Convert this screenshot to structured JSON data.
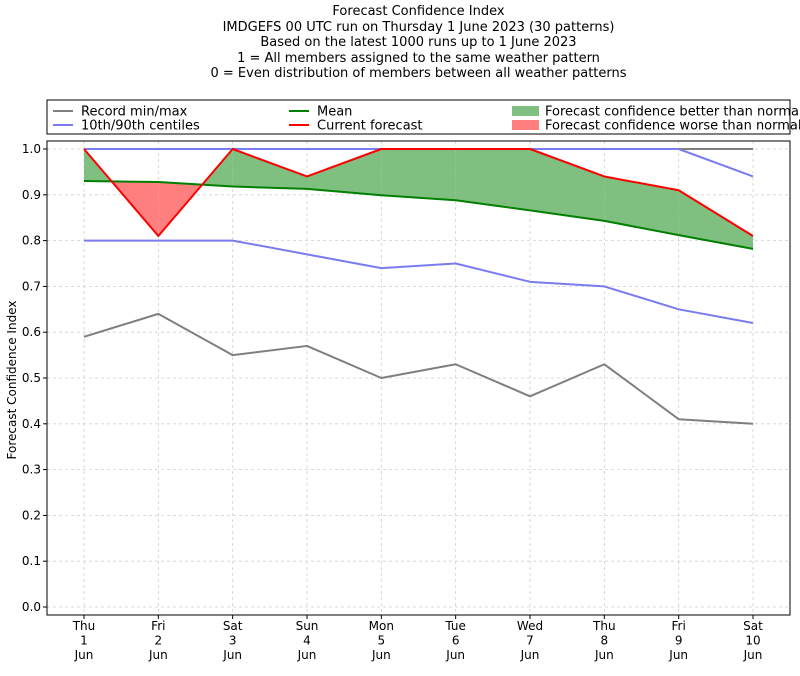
{
  "titles": {
    "line1": "Forecast Confidence Index",
    "line2": "IMDGEFS 00 UTC run on Thursday 1 June 2023 (30 patterns)",
    "line3": "Based on the latest 1000 runs up to 1 June 2023",
    "line4": "1 = All members assigned to the same weather pattern",
    "line5": "0 = Even distribution of members between all weather patterns"
  },
  "colors": {
    "record": "#7f7f7f",
    "centiles": "#7b7bf0",
    "mean": "#008000",
    "current": "#ff0000",
    "better": "#7fbf7f",
    "worse": "#ff7f7f",
    "grid": "#d0d0d0"
  },
  "chart_data": {
    "type": "line",
    "title": "Forecast Confidence Index",
    "xlabel": "",
    "ylabel": "Forecast Confidence Index",
    "ylim": [
      0,
      1
    ],
    "yticks": [
      "0.0",
      "0.1",
      "0.2",
      "0.3",
      "0.4",
      "0.5",
      "0.6",
      "0.7",
      "0.8",
      "0.9",
      "1.0"
    ],
    "grid": true,
    "legend_position": "top",
    "categories": [
      [
        "Thu",
        "1",
        "Jun"
      ],
      [
        "Fri",
        "2",
        "Jun"
      ],
      [
        "Sat",
        "3",
        "Jun"
      ],
      [
        "Sun",
        "4",
        "Jun"
      ],
      [
        "Mon",
        "5",
        "Jun"
      ],
      [
        "Tue",
        "6",
        "Jun"
      ],
      [
        "Wed",
        "7",
        "Jun"
      ],
      [
        "Thu",
        "8",
        "Jun"
      ],
      [
        "Fri",
        "9",
        "Jun"
      ],
      [
        "Sat",
        "10",
        "Jun"
      ]
    ],
    "series": {
      "record_max": [
        1.0,
        1.0,
        1.0,
        1.0,
        1.0,
        1.0,
        1.0,
        1.0,
        1.0,
        1.0
      ],
      "record_min": [
        0.59,
        0.64,
        0.55,
        0.57,
        0.5,
        0.53,
        0.46,
        0.53,
        0.41,
        0.4
      ],
      "centile_90": [
        1.0,
        1.0,
        1.0,
        1.0,
        1.0,
        1.0,
        1.0,
        1.0,
        1.0,
        0.94
      ],
      "centile_10": [
        0.8,
        0.8,
        0.8,
        0.77,
        0.74,
        0.75,
        0.71,
        0.7,
        0.65,
        0.62
      ],
      "mean": [
        0.93,
        0.928,
        0.918,
        0.913,
        0.899,
        0.888,
        0.866,
        0.843,
        0.812,
        0.782
      ],
      "current": [
        1.0,
        0.81,
        1.0,
        0.94,
        1.0,
        1.0,
        1.0,
        0.94,
        0.91,
        0.81
      ]
    },
    "legend": [
      {
        "name": "Record min/max",
        "kind": "line",
        "color_key": "record"
      },
      {
        "name": "10th/90th centiles",
        "kind": "line",
        "color_key": "centiles"
      },
      {
        "name": "Mean",
        "kind": "line",
        "color_key": "mean"
      },
      {
        "name": "Current forecast",
        "kind": "line",
        "color_key": "current"
      },
      {
        "name": "Forecast confidence better than normal",
        "kind": "patch",
        "color_key": "better"
      },
      {
        "name": "Forecast confidence worse than normal",
        "kind": "patch",
        "color_key": "worse"
      }
    ]
  }
}
